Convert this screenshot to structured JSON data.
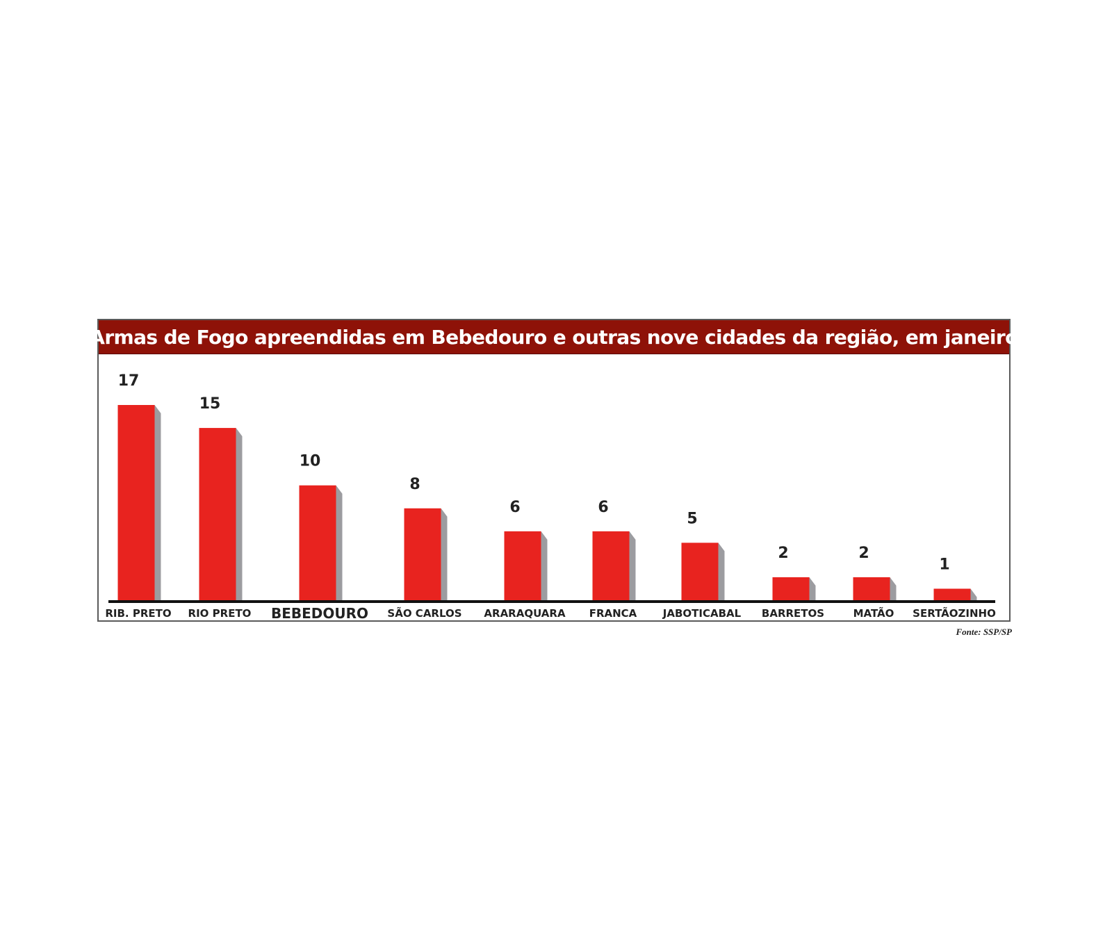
{
  "chart_data": {
    "type": "bar",
    "title": "Armas de Fogo apreendidas em Bebedouro e outras nove cidades da região, em janeiro",
    "categories": [
      "RIB. PRETO",
      "RIO PRETO",
      "BEBEDOURO",
      "SÃO CARLOS",
      "ARARAQUARA",
      "FRANCA",
      "JABOTICABAL",
      "BARRETOS",
      "MATÃO",
      "SERTÃOZINHO"
    ],
    "values": [
      17,
      15,
      10,
      8,
      6,
      6,
      5,
      2,
      2,
      1
    ],
    "highlight_category": "BEBEDOURO",
    "xlabel": "",
    "ylabel": "",
    "ylim": [
      0,
      17
    ],
    "grid": false,
    "legend": "none",
    "colors": {
      "bar": "#e8231f",
      "bar_shadow": "#9c9ca0",
      "title_background": "#8e1208",
      "title_text": "#ffffff",
      "axis": "#111111",
      "label_text": "#222222"
    },
    "source": "Fonte: SSP/SP"
  }
}
